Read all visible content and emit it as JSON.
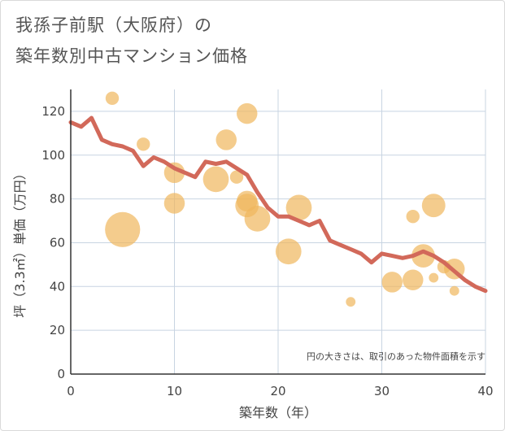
{
  "title_line1": "我孫子前駅（大阪府）の",
  "title_line2": "築年数別中古マンション価格",
  "chart_data": {
    "type": "scatter",
    "xlabel": "築年数（年）",
    "ylabel": "坪（3.3㎡）単価（万円）",
    "xlim": [
      0,
      40
    ],
    "ylim": [
      0,
      130
    ],
    "x_ticks": [
      0,
      10,
      20,
      30,
      40
    ],
    "y_ticks": [
      0,
      20,
      40,
      60,
      80,
      100,
      120
    ],
    "grid": true,
    "note": "円の大きさは、取引のあった物件面積を示す",
    "colors": {
      "bubble": "#f0b65c",
      "line": "#d2695a",
      "grid": "#c8d4e2",
      "axis": "#333333"
    },
    "bubbles": [
      {
        "x": 4,
        "y": 126,
        "size": 1
      },
      {
        "x": 5,
        "y": 66,
        "size": 10
      },
      {
        "x": 7,
        "y": 105,
        "size": 1
      },
      {
        "x": 10,
        "y": 92,
        "size": 3
      },
      {
        "x": 10,
        "y": 78,
        "size": 3
      },
      {
        "x": 14,
        "y": 89,
        "size": 5
      },
      {
        "x": 15,
        "y": 107,
        "size": 3
      },
      {
        "x": 16,
        "y": 90,
        "size": 1
      },
      {
        "x": 17,
        "y": 119,
        "size": 3
      },
      {
        "x": 17,
        "y": 79,
        "size": 3
      },
      {
        "x": 17,
        "y": 77,
        "size": 4
      },
      {
        "x": 18,
        "y": 71,
        "size": 5
      },
      {
        "x": 21,
        "y": 56,
        "size": 5
      },
      {
        "x": 22,
        "y": 76,
        "size": 5
      },
      {
        "x": 27,
        "y": 33,
        "size": 0.4
      },
      {
        "x": 31,
        "y": 42,
        "size": 3
      },
      {
        "x": 33,
        "y": 43,
        "size": 3
      },
      {
        "x": 33,
        "y": 72,
        "size": 1
      },
      {
        "x": 34,
        "y": 54,
        "size": 4
      },
      {
        "x": 35,
        "y": 77,
        "size": 4
      },
      {
        "x": 35,
        "y": 44,
        "size": 0.4
      },
      {
        "x": 36,
        "y": 49,
        "size": 1
      },
      {
        "x": 37,
        "y": 48,
        "size": 3
      },
      {
        "x": 37,
        "y": 38,
        "size": 0.4
      }
    ],
    "trend": {
      "x": [
        0,
        1,
        2,
        3,
        4,
        5,
        6,
        7,
        8,
        9,
        10,
        11,
        12,
        13,
        14,
        15,
        16,
        17,
        18,
        19,
        20,
        21,
        22,
        23,
        24,
        25,
        26,
        27,
        28,
        29,
        30,
        31,
        32,
        33,
        34,
        35,
        36,
        37,
        38,
        39,
        40
      ],
      "y": [
        115,
        113,
        117,
        107,
        105,
        104,
        102,
        95,
        99,
        97,
        94,
        92,
        90,
        97,
        96,
        97,
        94,
        91,
        83,
        76,
        72,
        72,
        70,
        68,
        70,
        61,
        59,
        57,
        55,
        51,
        55,
        54,
        53,
        54,
        56,
        54,
        51,
        47,
        43,
        40,
        38
      ]
    }
  }
}
